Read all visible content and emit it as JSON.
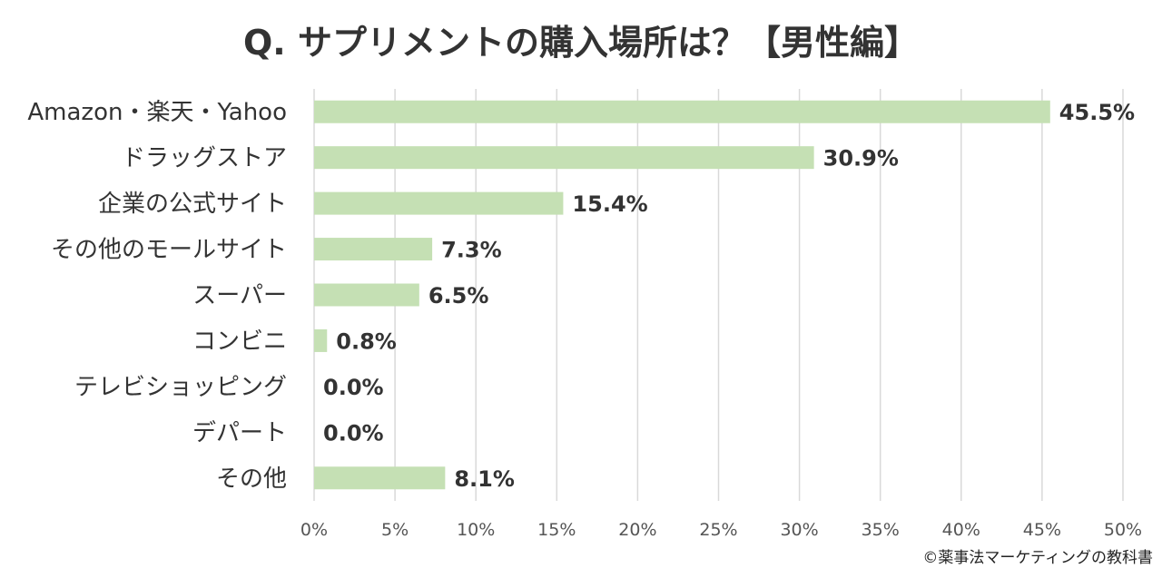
{
  "chart_data": {
    "type": "bar",
    "orientation": "horizontal",
    "title": "Q. サプリメントの購入場所は？【男性編】",
    "categories": [
      "Amazon・楽天・Yahoo",
      "ドラッグストア",
      "企業の公式サイト",
      "その他のモールサイト",
      "スーパー",
      "コンビニ",
      "テレビショッピング",
      "デパート",
      "その他"
    ],
    "values": [
      45.5,
      30.9,
      15.4,
      7.3,
      6.5,
      0.8,
      0.0,
      0.0,
      8.1
    ],
    "value_labels": [
      "45.5%",
      "30.9%",
      "15.4%",
      "7.3%",
      "6.5%",
      "0.8%",
      "0.0%",
      "0.0%",
      "8.1%"
    ],
    "xlim": [
      0,
      50
    ],
    "xticks": [
      "0%",
      "5%",
      "10%",
      "15%",
      "20%",
      "25%",
      "30%",
      "35%",
      "40%",
      "45%",
      "50%"
    ],
    "grid": true,
    "bar_color": "#c5e0b4",
    "grid_color": "#d9d9d9"
  },
  "footer": {
    "credit": "©薬事法マーケティングの教科書"
  }
}
